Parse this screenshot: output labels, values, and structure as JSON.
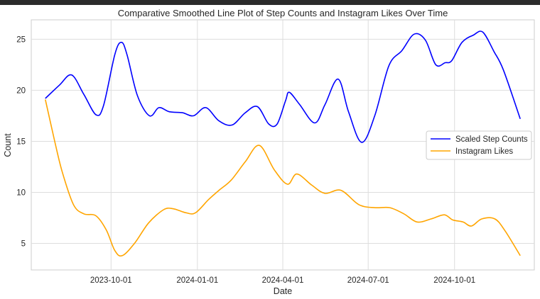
{
  "chart_data": {
    "type": "line",
    "title": "Comparative Smoothed Line Plot of Step Counts and Instagram Likes Over Time",
    "xlabel": "Date",
    "ylabel": "Count",
    "x_tick_labels": [
      "2023-10-01",
      "2024-01-01",
      "2024-04-01",
      "2024-07-01",
      "2024-10-01"
    ],
    "x_tick_dates": [
      "2023-10-01",
      "2024-01-01",
      "2024-04-01",
      "2024-07-01",
      "2024-10-01"
    ],
    "xlim": [
      "2023-07-08",
      "2024-12-25"
    ],
    "y_ticks": [
      5,
      10,
      15,
      20,
      25
    ],
    "ylim": [
      2.4,
      26.9
    ],
    "grid": true,
    "legend_position": "center-right",
    "series": [
      {
        "name": "Scaled Step Counts",
        "color": "#0000ff",
        "points": [
          [
            "2023-07-23",
            19.2
          ],
          [
            "2023-08-07",
            20.5
          ],
          [
            "2023-08-20",
            21.5
          ],
          [
            "2023-09-02",
            19.6
          ],
          [
            "2023-09-15",
            17.6
          ],
          [
            "2023-09-23",
            18.5
          ],
          [
            "2023-10-05",
            23.5
          ],
          [
            "2023-10-12",
            24.7
          ],
          [
            "2023-10-18",
            23.5
          ],
          [
            "2023-10-29",
            19.5
          ],
          [
            "2023-11-11",
            17.5
          ],
          [
            "2023-11-21",
            18.3
          ],
          [
            "2023-12-02",
            17.9
          ],
          [
            "2023-12-16",
            17.8
          ],
          [
            "2023-12-28",
            17.5
          ],
          [
            "2024-01-10",
            18.3
          ],
          [
            "2024-01-24",
            17.0
          ],
          [
            "2024-02-07",
            16.6
          ],
          [
            "2024-02-21",
            17.8
          ],
          [
            "2024-03-05",
            18.4
          ],
          [
            "2024-03-17",
            16.7
          ],
          [
            "2024-03-26",
            16.7
          ],
          [
            "2024-04-04",
            19.0
          ],
          [
            "2024-04-08",
            19.8
          ],
          [
            "2024-04-19",
            18.6
          ],
          [
            "2024-05-05",
            16.8
          ],
          [
            "2024-05-16",
            18.6
          ],
          [
            "2024-05-30",
            21.1
          ],
          [
            "2024-06-10",
            17.9
          ],
          [
            "2024-06-24",
            14.9
          ],
          [
            "2024-07-08",
            17.5
          ],
          [
            "2024-07-23",
            22.4
          ],
          [
            "2024-08-06",
            23.9
          ],
          [
            "2024-08-19",
            25.5
          ],
          [
            "2024-08-31",
            24.9
          ],
          [
            "2024-09-11",
            22.5
          ],
          [
            "2024-09-21",
            22.7
          ],
          [
            "2024-09-28",
            22.9
          ],
          [
            "2024-10-09",
            24.7
          ],
          [
            "2024-10-21",
            25.4
          ],
          [
            "2024-10-31",
            25.7
          ],
          [
            "2024-11-12",
            23.8
          ],
          [
            "2024-11-22",
            22.0
          ],
          [
            "2024-12-10",
            17.2
          ]
        ]
      },
      {
        "name": "Instagram Likes",
        "color": "#ffa500",
        "points": [
          [
            "2023-07-23",
            19.1
          ],
          [
            "2023-08-02",
            15.0
          ],
          [
            "2023-08-10",
            12.0
          ],
          [
            "2023-08-22",
            8.8
          ],
          [
            "2023-09-02",
            7.9
          ],
          [
            "2023-09-15",
            7.7
          ],
          [
            "2023-09-26",
            6.3
          ],
          [
            "2023-10-05",
            4.3
          ],
          [
            "2023-10-13",
            3.8
          ],
          [
            "2023-10-26",
            5.0
          ],
          [
            "2023-11-10",
            7.0
          ],
          [
            "2023-11-26",
            8.3
          ],
          [
            "2023-12-06",
            8.4
          ],
          [
            "2023-12-20",
            8.0
          ],
          [
            "2023-12-30",
            8.0
          ],
          [
            "2024-01-13",
            9.3
          ],
          [
            "2024-01-24",
            10.2
          ],
          [
            "2024-02-06",
            11.2
          ],
          [
            "2024-02-21",
            13.0
          ],
          [
            "2024-03-07",
            14.6
          ],
          [
            "2024-03-23",
            12.2
          ],
          [
            "2024-04-06",
            10.8
          ],
          [
            "2024-04-16",
            11.8
          ],
          [
            "2024-05-02",
            10.7
          ],
          [
            "2024-05-16",
            9.9
          ],
          [
            "2024-06-02",
            10.2
          ],
          [
            "2024-06-21",
            8.8
          ],
          [
            "2024-07-08",
            8.5
          ],
          [
            "2024-07-24",
            8.5
          ],
          [
            "2024-08-08",
            7.9
          ],
          [
            "2024-08-22",
            7.1
          ],
          [
            "2024-09-06",
            7.4
          ],
          [
            "2024-09-20",
            7.8
          ],
          [
            "2024-09-29",
            7.3
          ],
          [
            "2024-10-10",
            7.1
          ],
          [
            "2024-10-19",
            6.7
          ],
          [
            "2024-10-30",
            7.4
          ],
          [
            "2024-11-13",
            7.4
          ],
          [
            "2024-11-24",
            6.2
          ],
          [
            "2024-12-10",
            3.8
          ]
        ]
      }
    ]
  }
}
